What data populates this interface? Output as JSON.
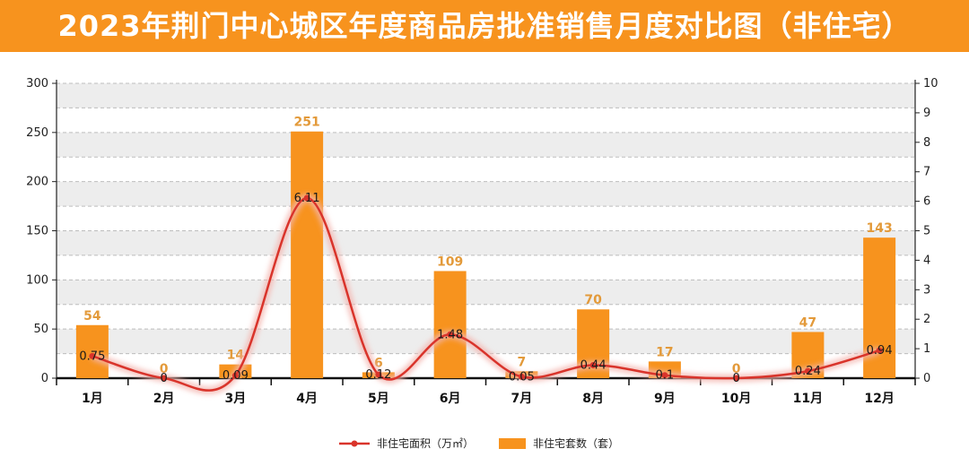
{
  "title": "2023年荆门中心城区年度商品房批准销售月度对比图（非住宅）",
  "colors": {
    "title_bg": "#f7931e",
    "bar": "#f7931e",
    "line": "#d9342b",
    "line_glow": "#f4b6b0",
    "bar_label": "#e39a3a",
    "band": "#ededed"
  },
  "chart_data": {
    "type": "bar",
    "title": "2023年荆门中心城区年度商品房批准销售月度对比图（非住宅）",
    "categories": [
      "1月",
      "2月",
      "3月",
      "4月",
      "5月",
      "6月",
      "7月",
      "8月",
      "9月",
      "10月",
      "11月",
      "12月"
    ],
    "series": [
      {
        "name": "非住宅套数（套）",
        "type": "bar",
        "axis": "left",
        "values": [
          54,
          0,
          14,
          251,
          6,
          109,
          7,
          70,
          17,
          0,
          47,
          143
        ],
        "labels": [
          "54",
          "0",
          "14",
          "251",
          "6",
          "109",
          "7",
          "70",
          "17",
          "0",
          "47",
          "143"
        ]
      },
      {
        "name": "非住宅面积（万㎡）",
        "type": "line",
        "smooth": true,
        "axis": "right",
        "values": [
          0.75,
          0,
          0.09,
          6.11,
          0.12,
          1.48,
          0.05,
          0.44,
          0.1,
          0,
          0.24,
          0.94
        ],
        "labels": [
          "0.75",
          "0",
          "0.09",
          "6.11",
          "0.12",
          "1.48",
          "0.05",
          "0.44",
          "0.1",
          "0",
          "0.24",
          "0.94"
        ]
      }
    ],
    "y_left": {
      "ylim": [
        0,
        300
      ],
      "ticks": [
        "0",
        "50",
        "100",
        "150",
        "200",
        "250",
        "300"
      ]
    },
    "y_right": {
      "ylim": [
        0,
        10
      ],
      "ticks": [
        "0",
        "1",
        "2",
        "3",
        "4",
        "5",
        "6",
        "7",
        "8",
        "9",
        "10"
      ]
    },
    "grid": true,
    "legend_position": "bottom-center",
    "legend": [
      "非住宅面积（万㎡）",
      "非住宅套数（套）"
    ]
  }
}
